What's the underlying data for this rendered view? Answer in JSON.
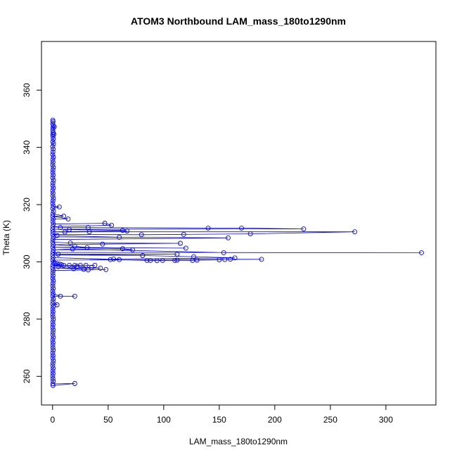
{
  "chart_data": {
    "type": "scatter",
    "title": "ATOM3 Northbound LAM_mass_180to1290nm",
    "xlabel": "LAM_mass_180to1290nm",
    "ylabel": "Theta (K)",
    "xlim": [
      -10,
      345
    ],
    "ylim": [
      250,
      377
    ],
    "x_ticks": [
      0,
      50,
      100,
      150,
      200,
      250,
      300
    ],
    "y_ticks": [
      260,
      280,
      300,
      320,
      340,
      360
    ],
    "grid": false,
    "legend": "none",
    "series_color": "#0000ff",
    "marker": "open-circle",
    "connected": true,
    "points": [
      [
        0.2,
        349.5
      ],
      [
        0.4,
        349
      ],
      [
        0.1,
        348.2
      ],
      [
        0.6,
        347.5
      ],
      [
        0.3,
        346.8
      ],
      [
        1.5,
        347.2
      ],
      [
        0.2,
        346
      ],
      [
        0.5,
        345.2
      ],
      [
        0.1,
        344.5
      ],
      [
        1.2,
        344.6
      ],
      [
        0.3,
        343.8
      ],
      [
        0.6,
        342.9
      ],
      [
        0.2,
        342
      ],
      [
        0.8,
        341.2
      ],
      [
        0.1,
        340.3
      ],
      [
        0.5,
        339.4
      ],
      [
        0.3,
        338.4
      ],
      [
        0.1,
        337.5
      ],
      [
        0.7,
        336.6
      ],
      [
        0.2,
        335.7
      ],
      [
        0.4,
        334.8
      ],
      [
        0.1,
        333.9
      ],
      [
        0.6,
        333
      ],
      [
        0.3,
        332.1
      ],
      [
        0.2,
        331.2
      ],
      [
        0.5,
        330.3
      ],
      [
        0.1,
        329.4
      ],
      [
        0.8,
        328.5
      ],
      [
        0.3,
        327.6
      ],
      [
        0.2,
        326.7
      ],
      [
        0.6,
        325.8
      ],
      [
        0.1,
        324.9
      ],
      [
        0.4,
        324
      ],
      [
        0.2,
        323.1
      ],
      [
        0.7,
        322.2
      ],
      [
        0.3,
        321.3
      ],
      [
        0.1,
        320.4
      ],
      [
        0.5,
        319.5
      ],
      [
        6,
        319.2
      ],
      [
        0.2,
        318.6
      ],
      [
        0.8,
        317.7
      ],
      [
        0.3,
        316.8
      ],
      [
        10,
        316
      ],
      [
        0.1,
        315.9
      ],
      [
        14,
        315
      ],
      [
        0.5,
        315
      ],
      [
        0.2,
        314.1
      ],
      [
        0.6,
        313.2
      ],
      [
        47,
        313.5
      ],
      [
        53,
        312.8
      ],
      [
        0.3,
        312.3
      ],
      [
        7,
        312
      ],
      [
        32,
        312
      ],
      [
        140,
        311.8
      ],
      [
        170,
        311.8
      ],
      [
        226,
        311.5
      ],
      [
        0.1,
        311.4
      ],
      [
        15,
        311.3
      ],
      [
        63,
        311
      ],
      [
        67,
        310.8
      ],
      [
        0.4,
        310.5
      ],
      [
        11,
        310.4
      ],
      [
        33,
        310.5
      ],
      [
        272,
        310.5
      ],
      [
        178,
        309.8
      ],
      [
        118,
        309.6
      ],
      [
        80,
        309.5
      ],
      [
        0.2,
        309.6
      ],
      [
        4,
        309.2
      ],
      [
        60,
        308.6
      ],
      [
        0.6,
        308.7
      ],
      [
        158,
        308.4
      ],
      [
        0.3,
        307.8
      ],
      [
        0.1,
        306.9
      ],
      [
        16,
        306.6
      ],
      [
        115,
        306.5
      ],
      [
        45,
        306.2
      ],
      [
        0.5,
        306
      ],
      [
        20,
        305.5
      ],
      [
        31,
        305
      ],
      [
        120,
        304.8
      ],
      [
        0.2,
        305.1
      ],
      [
        63,
        304.6
      ],
      [
        72,
        304.2
      ],
      [
        0.7,
        304.2
      ],
      [
        18,
        304.5
      ],
      [
        154,
        303.2
      ],
      [
        332,
        303.2
      ],
      [
        0.3,
        303.3
      ],
      [
        5,
        302.7
      ],
      [
        112,
        302.7
      ],
      [
        0.1,
        302.4
      ],
      [
        81,
        302.2
      ],
      [
        127,
        301.8
      ],
      [
        164,
        301.4
      ],
      [
        55,
        301
      ],
      [
        60,
        300.8
      ],
      [
        0.4,
        301.5
      ],
      [
        52,
        300.8
      ],
      [
        85,
        300.5
      ],
      [
        88,
        300.5
      ],
      [
        94,
        300.4
      ],
      [
        99,
        300.5
      ],
      [
        110,
        300.5
      ],
      [
        112,
        300.6
      ],
      [
        126,
        300.5
      ],
      [
        130,
        300.6
      ],
      [
        150,
        300.7
      ],
      [
        155,
        300.8
      ],
      [
        160,
        300.9
      ],
      [
        188,
        300.9
      ],
      [
        0.2,
        300.6
      ],
      [
        0.6,
        299.7
      ],
      [
        2,
        299.6
      ],
      [
        4,
        299.4
      ],
      [
        6,
        299.2
      ],
      [
        8,
        299
      ],
      [
        10,
        298.8
      ],
      [
        15,
        298.8
      ],
      [
        20,
        298.8
      ],
      [
        25,
        298.8
      ],
      [
        30,
        298.8
      ],
      [
        38,
        298.8
      ],
      [
        0.3,
        298.8
      ],
      [
        5,
        298.4
      ],
      [
        22,
        298.5
      ],
      [
        35,
        298
      ],
      [
        43,
        297.8
      ],
      [
        0.1,
        297.9
      ],
      [
        19,
        297.6
      ],
      [
        28,
        297.4
      ],
      [
        32,
        297.2
      ],
      [
        48,
        297.3
      ],
      [
        0.5,
        297
      ],
      [
        0.2,
        296.1
      ],
      [
        0.4,
        295.2
      ],
      [
        0.1,
        294.3
      ],
      [
        0.6,
        293.4
      ],
      [
        0.3,
        292.5
      ],
      [
        0.2,
        291.6
      ],
      [
        0.5,
        290.7
      ],
      [
        0.1,
        289.8
      ],
      [
        0.4,
        288.9
      ],
      [
        7,
        288
      ],
      [
        20,
        288
      ],
      [
        0.2,
        288
      ],
      [
        0.6,
        287.1
      ],
      [
        0.3,
        286.2
      ],
      [
        4,
        285
      ],
      [
        0.1,
        285.3
      ],
      [
        0.5,
        284.4
      ],
      [
        0.2,
        283.5
      ],
      [
        0.4,
        282.6
      ],
      [
        0.1,
        281.7
      ],
      [
        0.3,
        280.8
      ],
      [
        0.6,
        279.9
      ],
      [
        0.2,
        279
      ],
      [
        0.4,
        278.1
      ],
      [
        0.1,
        277.2
      ],
      [
        0.5,
        276.3
      ],
      [
        0.3,
        275.4
      ],
      [
        0.2,
        274.5
      ],
      [
        0.6,
        273.6
      ],
      [
        0.1,
        272.7
      ],
      [
        0.4,
        271.8
      ],
      [
        0.2,
        270.9
      ],
      [
        0.3,
        270
      ],
      [
        0.5,
        269.1
      ],
      [
        0.1,
        268.2
      ],
      [
        0.4,
        267.3
      ],
      [
        0.2,
        266.4
      ],
      [
        0.6,
        265.5
      ],
      [
        0.3,
        264.6
      ],
      [
        0.1,
        263.7
      ],
      [
        0.5,
        262.8
      ],
      [
        0.2,
        261.9
      ],
      [
        0.4,
        261
      ],
      [
        0.1,
        260.1
      ],
      [
        0.3,
        259.2
      ],
      [
        0.5,
        258.3
      ],
      [
        0.2,
        257.4
      ],
      [
        20,
        257.5
      ],
      [
        0.4,
        256.8
      ]
    ]
  }
}
